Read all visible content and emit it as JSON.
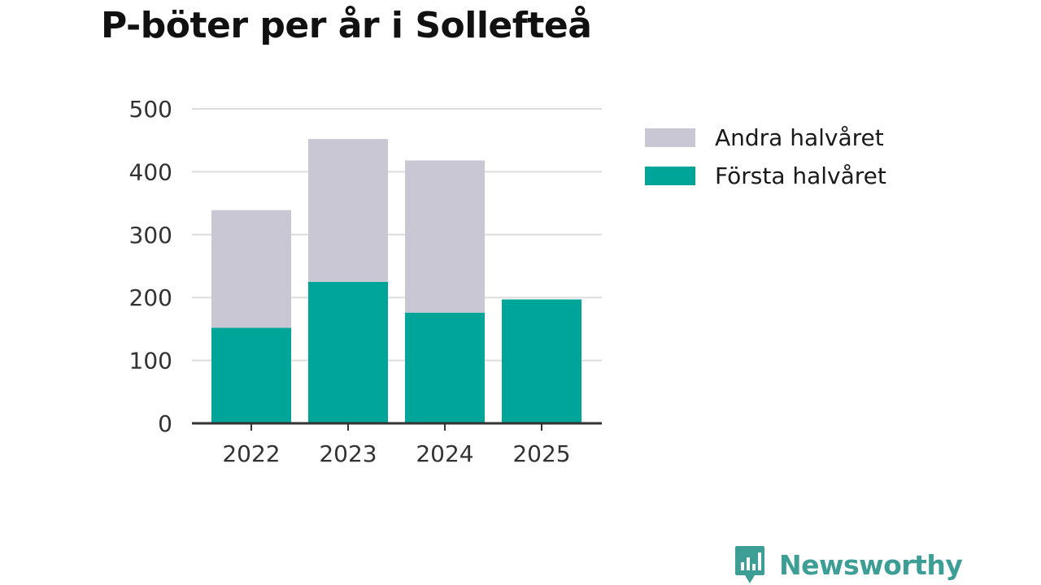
{
  "colors": {
    "andra": "#c8c7d3",
    "forsta": "#00a59a",
    "grid": "#dddddd",
    "axis": "#333333",
    "brand": "#3d9e96"
  },
  "chart_data": {
    "type": "bar",
    "stacked": true,
    "title": "P-böter per år i Sollefteå",
    "categories": [
      "2022",
      "2023",
      "2024",
      "2025"
    ],
    "series": [
      {
        "name": "Första halvåret",
        "values": [
          152,
          225,
          176,
          197
        ]
      },
      {
        "name": "Andra halvåret",
        "values": [
          187,
          227,
          242,
          0
        ]
      }
    ],
    "ylim": [
      0,
      500
    ],
    "yticks": [
      "0",
      "100",
      "200",
      "300",
      "400",
      "500"
    ],
    "xlabel": "",
    "ylabel": "",
    "grid": true,
    "legend": [
      "Andra halvåret",
      "Första halvåret"
    ],
    "legend_position": "right"
  },
  "brand": {
    "name": "Newsworthy",
    "icon": "newsworthy-logo-icon"
  }
}
